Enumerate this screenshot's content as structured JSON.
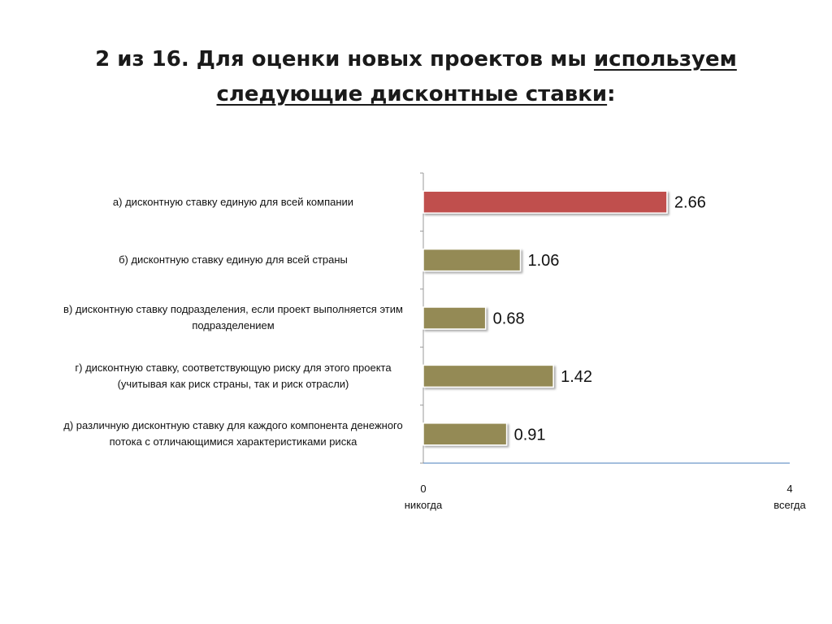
{
  "title": {
    "lead": "2 из 16. Для оценки новых проектов мы ",
    "underlined_1": "используем",
    "underlined_2": "следующие дисконтные ставки",
    "tail": ":"
  },
  "colors": {
    "highlight_bar": "#c0504d",
    "bar": "#948a54",
    "axis": "#4a7ebb"
  },
  "chart_data": {
    "type": "bar",
    "orientation": "horizontal",
    "categories": [
      "а) дисконтную ставку единую для всей компании",
      "б) дисконтную ставку единую для всей страны",
      "в) дисконтную ставку подразделения, если проект выполняется этим подразделением",
      "г) дисконтную ставку, соответствующую риску для этого проекта (учитывая как риск страны, так и риск отрасли)",
      "д) различную дисконтную ставку для каждого компонента денежного потока с отличающимися характеристиками риска"
    ],
    "values": [
      2.66,
      1.06,
      0.68,
      1.42,
      0.91
    ],
    "data_labels": [
      "2.66",
      "1.06",
      "0.68",
      "1.42",
      "0.91"
    ],
    "highlight_index": 0,
    "xlim": [
      0,
      4
    ],
    "x_ticks": [
      {
        "value": "0",
        "label": "никогда"
      },
      {
        "value": "4",
        "label": "всегда"
      }
    ],
    "grid": false,
    "legend": "none"
  }
}
